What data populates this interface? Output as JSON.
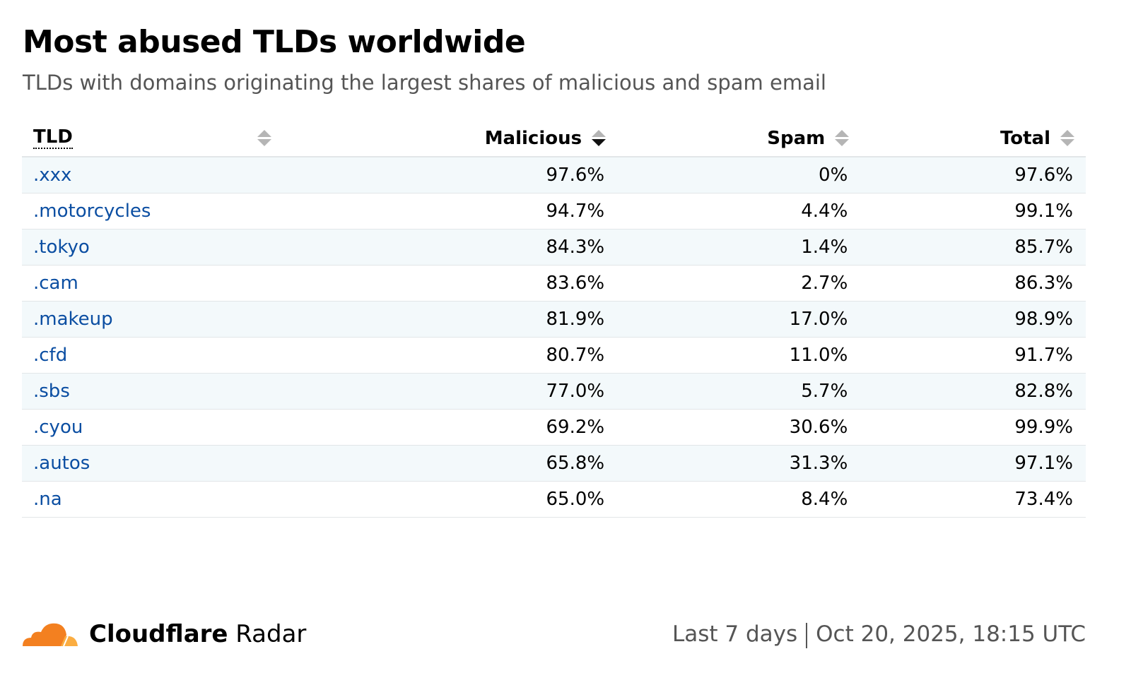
{
  "title": "Most abused TLDs worldwide",
  "subtitle": "TLDs with domains originating the largest shares of malicious and spam email",
  "table": {
    "headers": [
      "TLD",
      "Malicious",
      "Spam",
      "Total"
    ],
    "sorted_column": "Malicious",
    "sort_direction": "descending",
    "rows": [
      {
        "tld": ".xxx",
        "malicious": "97.6%",
        "spam": "0%",
        "total": "97.6%"
      },
      {
        "tld": ".motorcycles",
        "malicious": "94.7%",
        "spam": "4.4%",
        "total": "99.1%"
      },
      {
        "tld": ".tokyo",
        "malicious": "84.3%",
        "spam": "1.4%",
        "total": "85.7%"
      },
      {
        "tld": ".cam",
        "malicious": "83.6%",
        "spam": "2.7%",
        "total": "86.3%"
      },
      {
        "tld": ".makeup",
        "malicious": "81.9%",
        "spam": "17.0%",
        "total": "98.9%"
      },
      {
        "tld": ".cfd",
        "malicious": "80.7%",
        "spam": "11.0%",
        "total": "91.7%"
      },
      {
        "tld": ".sbs",
        "malicious": "77.0%",
        "spam": "5.7%",
        "total": "82.8%"
      },
      {
        "tld": ".cyou",
        "malicious": "69.2%",
        "spam": "30.6%",
        "total": "99.9%"
      },
      {
        "tld": ".autos",
        "malicious": "65.8%",
        "spam": "31.3%",
        "total": "97.1%"
      },
      {
        "tld": ".na",
        "malicious": "65.0%",
        "spam": "8.4%",
        "total": "73.4%"
      }
    ]
  },
  "footer": {
    "brand_bold": "Cloudflare",
    "brand_light": "Radar",
    "period": "Last 7 days",
    "timestamp": "Oct 20, 2025, 18:15 UTC"
  },
  "colors": {
    "link": "#0b4ea2",
    "logo_orange": "#f38020",
    "logo_light": "#fbad41",
    "row_stripe": "#f3f9fb"
  }
}
